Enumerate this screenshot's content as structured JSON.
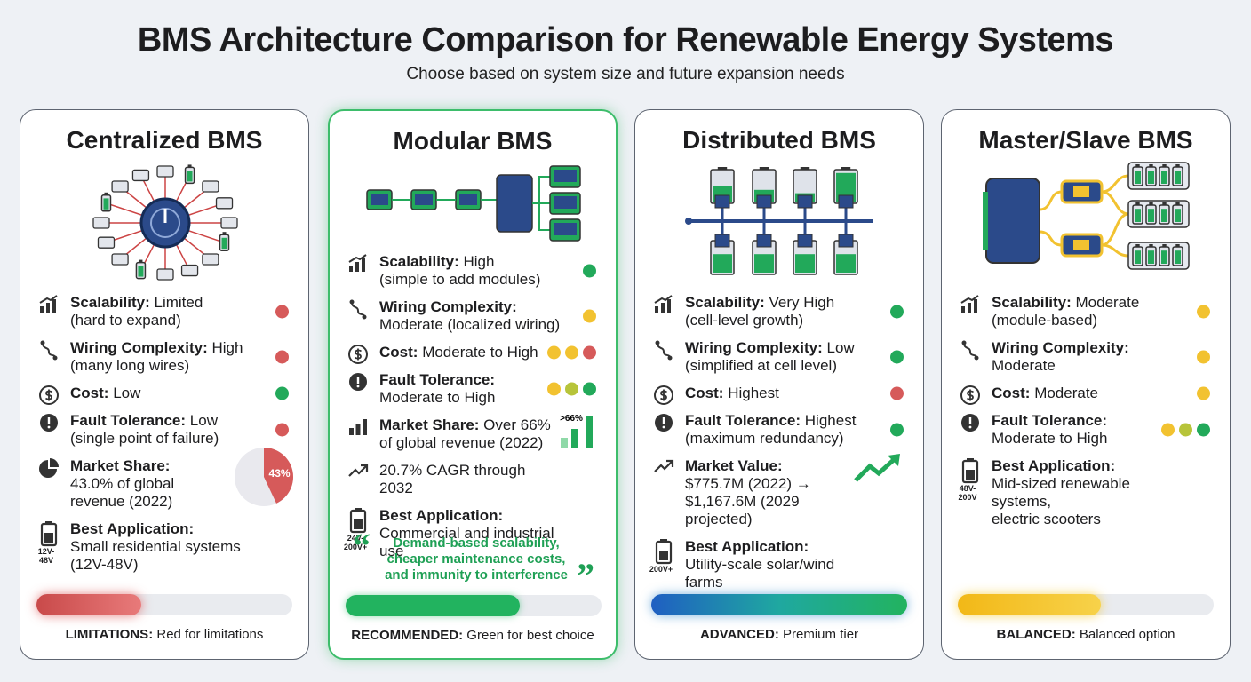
{
  "header": {
    "title": "BMS Architecture Comparison for Renewable Energy Systems",
    "subtitle": "Choose based on system size and future expansion needs"
  },
  "cards": [
    {
      "title": "Centralized BMS",
      "rows": [
        {
          "label": "Scalability:",
          "lines": [
            "Limited",
            "(hard to expand)"
          ],
          "dots": [
            "#d65a5a"
          ]
        },
        {
          "label": "Wiring Complexity:",
          "lines": [
            "High",
            "(many long wires)"
          ],
          "dots": [
            "#d65a5a"
          ]
        },
        {
          "label": "Cost:",
          "lines": [
            "Low"
          ],
          "dots": [
            "#22a95a"
          ]
        },
        {
          "label": "Fault Tolerance:",
          "lines": [
            "Low",
            "(single point of failure)"
          ],
          "dots": [
            "#d65a5a"
          ]
        },
        {
          "label": "Market Share:",
          "lines": [
            "43.0% of global",
            "revenue (2022)"
          ],
          "pie": {
            "value": 43,
            "label": "43%"
          }
        },
        {
          "label": "Best Application:",
          "lines": [
            "Small residential systems",
            "(12V-48V)"
          ],
          "badge": "12V-48V"
        }
      ],
      "footer": {
        "label": "LIMITATIONS:",
        "text": "Red for limitations"
      }
    },
    {
      "title": "Modular BMS",
      "rows": [
        {
          "label": "Scalability:",
          "lines": [
            "High",
            "(simple to add modules)"
          ],
          "dots": [
            "#22a95a"
          ]
        },
        {
          "label": "Wiring Complexity:",
          "lines": [
            "Moderate (localized wiring)"
          ],
          "dots": [
            "#f2c230"
          ]
        },
        {
          "label": "Cost:",
          "lines": [
            "Moderate to High"
          ],
          "dots": [
            "#f2c230",
            "#f2c230",
            "#d65a5a"
          ]
        },
        {
          "label": "Fault Tolerance:",
          "lines": [
            "Moderate to High"
          ],
          "dots": [
            "#f2c230",
            "#b7c43a",
            "#22a95a"
          ]
        },
        {
          "label": "Market Share:",
          "lines": [
            "Over 66%",
            "of global revenue (2022)"
          ],
          "chip": ">66%"
        },
        {
          "lines": [
            "20.7% CAGR through 2032"
          ]
        },
        {
          "label": "Best Application:",
          "lines": [
            "Commercial and industrial use"
          ],
          "badge": "24V-200V+"
        }
      ],
      "quote": [
        "Demand-based scalability,",
        "cheaper maintenance costs,",
        "and immunity to interference"
      ],
      "footer": {
        "label": "RECOMMENDED:",
        "text": "Green for best choice"
      }
    },
    {
      "title": "Distributed BMS",
      "rows": [
        {
          "label": "Scalability:",
          "lines": [
            "Very High",
            "(cell-level growth)"
          ],
          "dots": [
            "#22a95a"
          ]
        },
        {
          "label": "Wiring Complexity:",
          "lines": [
            "Low",
            "(simplified at cell level)"
          ],
          "dots": [
            "#22a95a"
          ]
        },
        {
          "label": "Cost:",
          "lines": [
            "Highest"
          ],
          "dots": [
            "#d65a5a"
          ]
        },
        {
          "label": "Fault Tolerance:",
          "lines": [
            "Highest",
            "(maximum redundancy)"
          ],
          "dots": [
            "#22a95a"
          ]
        },
        {
          "label": "Market Value:",
          "lines": [
            "$775.7M (2022) →",
            "$1,167.6M (2029 projected)"
          ]
        },
        {
          "label": "Best Application:",
          "lines": [
            "Utility-scale solar/wind farms"
          ],
          "badge": "200V+"
        }
      ],
      "footer": {
        "label": "ADVANCED:",
        "text": "Premium tier"
      }
    },
    {
      "title": "Master/Slave BMS",
      "rows": [
        {
          "label": "Scalability:",
          "lines": [
            "Moderate",
            "(module-based)"
          ],
          "dots": [
            "#f2c230"
          ]
        },
        {
          "label": "Wiring Complexity:",
          "lines": [
            "Moderate"
          ],
          "dots": [
            "#f2c230"
          ]
        },
        {
          "label": "Cost:",
          "lines": [
            "Moderate"
          ],
          "dots": [
            "#f2c230"
          ]
        },
        {
          "label": "Fault Tolerance:",
          "lines": [
            "Moderate to High"
          ],
          "dots": [
            "#f2c230",
            "#b7c43a",
            "#22a95a"
          ]
        },
        {
          "label": "Best Application:",
          "lines": [
            "Mid-sized renewable systems,",
            "electric scooters"
          ],
          "badge": "48V-200V"
        }
      ],
      "footer": {
        "label": "BALANCED:",
        "text": "Balanced option"
      }
    }
  ]
}
